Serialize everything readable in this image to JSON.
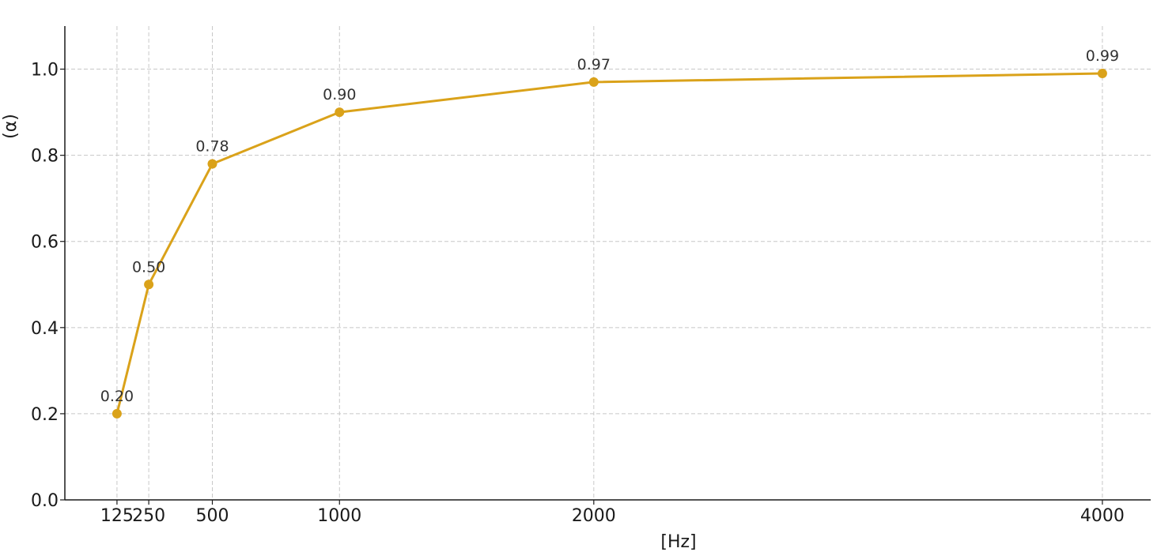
{
  "chart_data": {
    "type": "line",
    "title": "",
    "xlabel": "[Hz]",
    "ylabel": "(α)",
    "x": [
      125,
      250,
      500,
      1000,
      2000,
      4000
    ],
    "x_tick_labels": [
      "125",
      "250",
      "500",
      "1000",
      "2000",
      "4000"
    ],
    "y_ticks": [
      0.0,
      0.2,
      0.4,
      0.6,
      0.8,
      1.0
    ],
    "y_tick_labels": [
      "0.0",
      "0.2",
      "0.4",
      "0.6",
      "0.8",
      "1.0"
    ],
    "ylim": [
      0,
      1.1
    ],
    "xlim": [
      -80,
      4190
    ],
    "grid": true,
    "series": [
      {
        "values": [
          0.2,
          0.5,
          0.78,
          0.9,
          0.97,
          0.99
        ],
        "data_labels": [
          "0.20",
          "0.50",
          "0.78",
          "0.90",
          "0.97",
          "0.99"
        ],
        "color": "#DAA21A"
      }
    ]
  }
}
